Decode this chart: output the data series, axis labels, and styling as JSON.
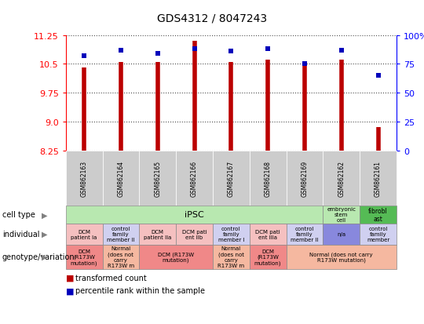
{
  "title": "GDS4312 / 8047243",
  "samples": [
    "GSM862163",
    "GSM862164",
    "GSM862165",
    "GSM862166",
    "GSM862167",
    "GSM862168",
    "GSM862169",
    "GSM862162",
    "GSM862161"
  ],
  "red_values": [
    10.4,
    10.55,
    10.55,
    11.1,
    10.55,
    10.6,
    10.5,
    10.6,
    8.85
  ],
  "blue_values": [
    82,
    87,
    84,
    88,
    86,
    88,
    75,
    87,
    65
  ],
  "ylim_left": [
    8.25,
    11.25
  ],
  "yticks_left": [
    8.25,
    9.0,
    9.75,
    10.5,
    11.25
  ],
  "ylim_right": [
    0,
    100
  ],
  "yticks_right": [
    0,
    25,
    50,
    75,
    100
  ],
  "bar_color": "#BB0000",
  "dot_color": "#0000BB",
  "bar_bottom": 8.25,
  "cell_type_ipsc_color": "#b8e8b0",
  "cell_type_embryo_color": "#b8e8b0",
  "cell_type_fibro_color": "#55bb55",
  "indiv_pink": "#f5c0c0",
  "indiv_lavender": "#d0d0f0",
  "indiv_purple": "#8888dd",
  "geno_red": "#f08888",
  "geno_orange": "#f5b8a0",
  "row_label_color": "#444444",
  "grid_color": "#888888",
  "sample_label_bg": "#cccccc"
}
